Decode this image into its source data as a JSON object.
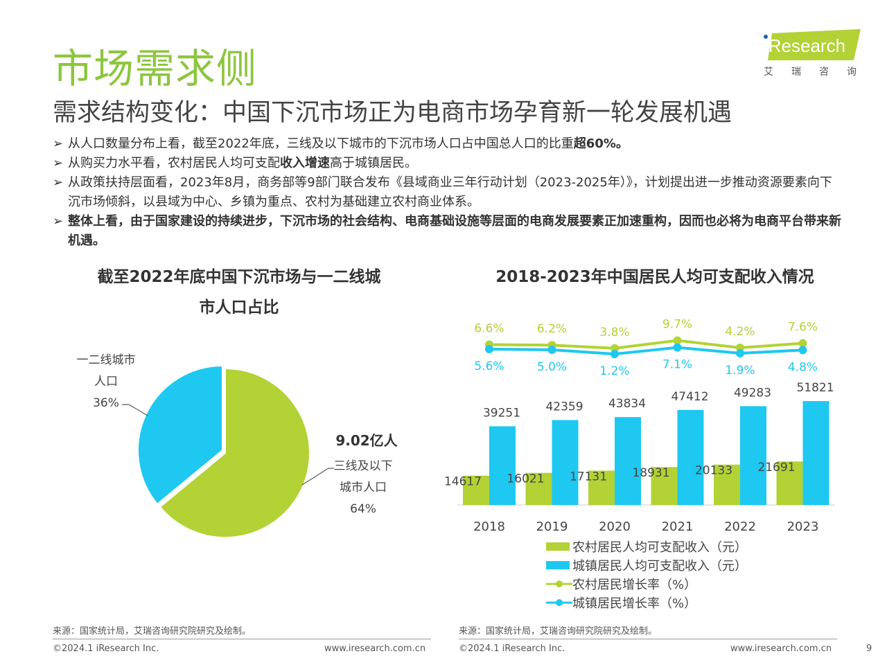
{
  "header": {
    "title": "市场需求侧",
    "subtitle": "需求结构变化：中国下沉市场正为电商市场孕育新一轮发展机遇",
    "logo": "iResearch",
    "logo_cn": "艾瑞咨询"
  },
  "bullets": [
    {
      "pre": "从人口数量分布上看，截至2022年底，三线及以下城市的下沉市场人口占中国总人口的比重",
      "bold": "超60%。",
      "post": ""
    },
    {
      "pre": "从购买力水平看，农村居民人均可支配",
      "bold": "收入增速",
      "post": "高于城镇居民。"
    },
    {
      "pre": "从政策扶持层面看，2023年8月，商务部等9部门联合发布《县域商业三年行动计划（2023-2025年）》，计划提出进一步推动资源要素向下沉市场倾斜，以县域为中心、乡镇为重点、农村为基础建立农村商业体系。",
      "bold": "",
      "post": ""
    },
    {
      "pre": "",
      "bold": "整体上看，由于国家建设的持续进步，下沉市场的社会结构、电商基础设施等层面的电商发展要素正加速重构，因而也必将为电商平台带来新机遇。",
      "post": ""
    }
  ],
  "colors": {
    "green": "#b2d235",
    "blue": "#1ec8f0",
    "title_green": "#8dc63f"
  },
  "chart_data": [
    {
      "type": "pie",
      "title": "截至2022年底中国下沉市场与一二线城市人口占比",
      "slices": [
        {
          "label": "三线及以下城市人口",
          "value": 64,
          "pct": "64%",
          "note": "9.02亿人",
          "color": "#b2d235"
        },
        {
          "label": "一二线城市人口",
          "value": 36,
          "pct": "36%",
          "color": "#1ec8f0"
        }
      ]
    },
    {
      "type": "bar",
      "title": "2018-2023年中国居民人均可支配收入情况",
      "categories": [
        "2018",
        "2019",
        "2020",
        "2021",
        "2022",
        "2023"
      ],
      "series": [
        {
          "name": "农村居民人均可支配收入（元）",
          "kind": "bar",
          "color": "#b2d235",
          "values": [
            14617,
            16021,
            17131,
            18931,
            20133,
            21691
          ]
        },
        {
          "name": "城镇居民人均可支配收入（元）",
          "kind": "bar",
          "color": "#1ec8f0",
          "values": [
            39251,
            42359,
            43834,
            47412,
            49283,
            51821
          ]
        },
        {
          "name": "农村居民增长率（%）",
          "kind": "line",
          "color": "#b2d235",
          "values": [
            6.6,
            6.2,
            3.8,
            9.7,
            4.2,
            7.6
          ],
          "labels": [
            "6.6%",
            "6.2%",
            "3.8%",
            "9.7%",
            "4.2%",
            "7.6%"
          ]
        },
        {
          "name": "城镇居民增长率（%）",
          "kind": "line",
          "color": "#1ec8f0",
          "values": [
            5.6,
            5.0,
            1.2,
            7.1,
            1.9,
            4.8
          ],
          "labels": [
            "5.6%",
            "5.0%",
            "1.2%",
            "7.1%",
            "1.9%",
            "4.8%"
          ]
        }
      ]
    }
  ],
  "footer": {
    "source": "来源：国家统计局，艾瑞咨询研究院研究及绘制。",
    "copyright": "©2024.1 iResearch Inc.",
    "url": "www.iresearch.com.cn",
    "page": "9"
  }
}
